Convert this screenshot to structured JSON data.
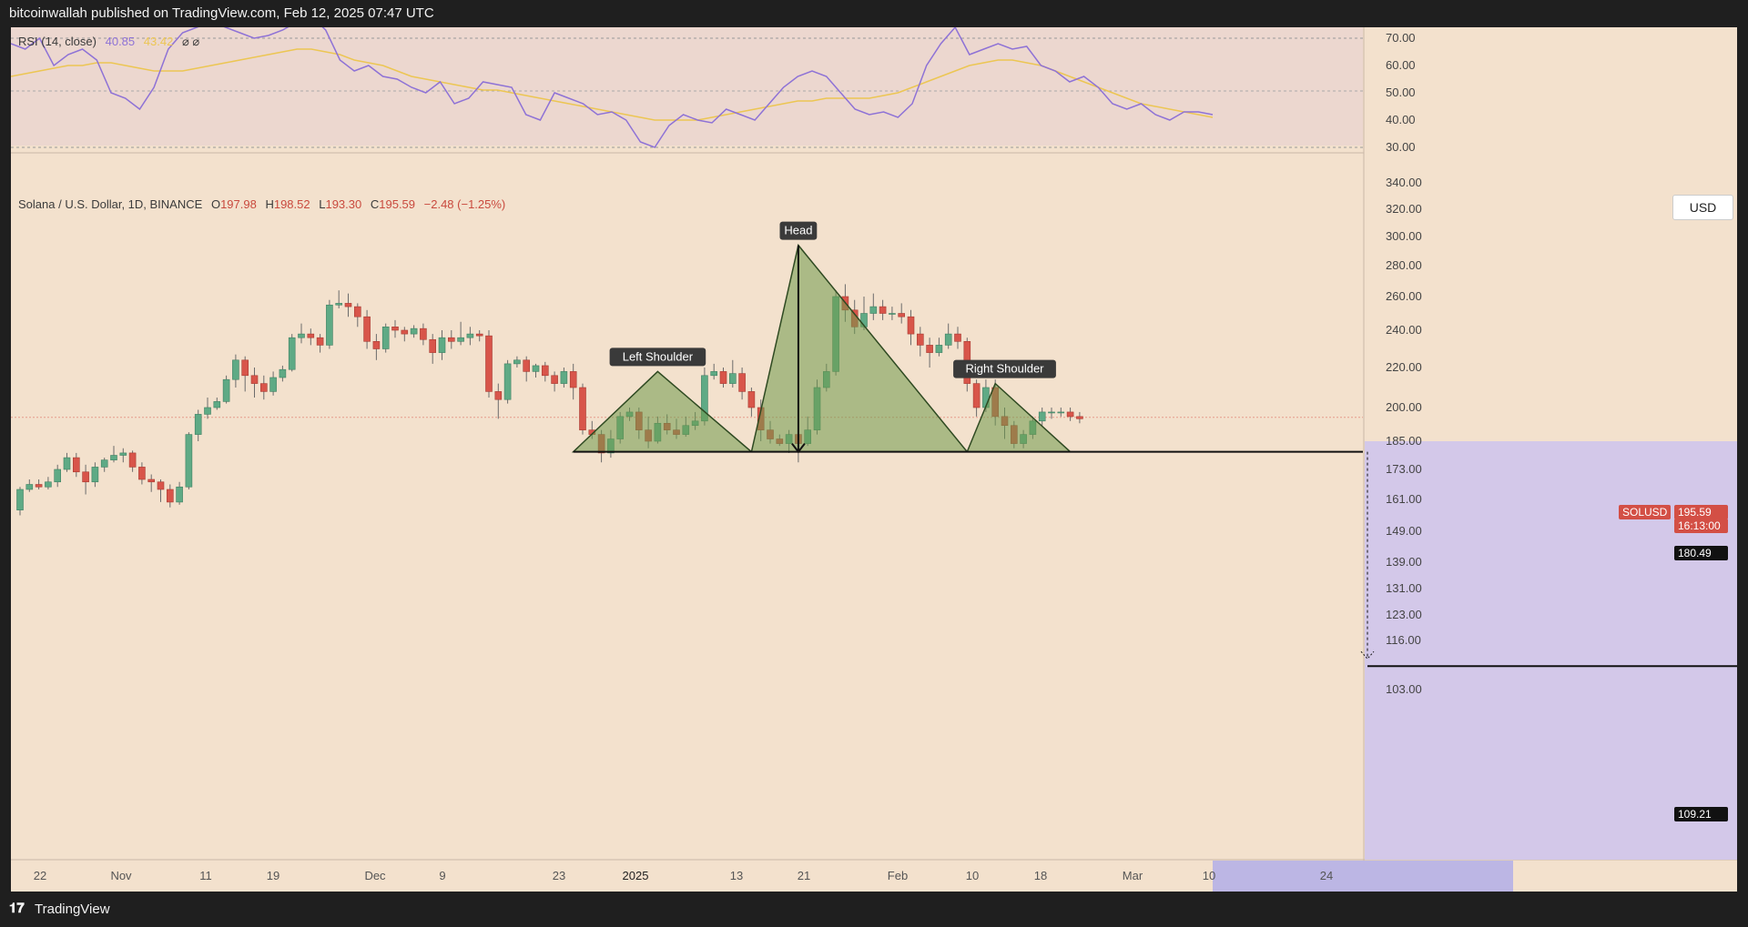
{
  "publisher": "bitcoinwallah published on TradingView.com, Feb 12, 2025 07:47 UTC",
  "footer": {
    "logo_text": "𝟏𝟕",
    "brand": "TradingView"
  },
  "rsi_legend": {
    "name": "RSI (14, close)",
    "rsi_value": "40.85",
    "ma_value": "43.42",
    "extra": "⌀ ⌀"
  },
  "main_legend": {
    "symbol": "Solana / U.S. Dollar, 1D, BINANCE",
    "open_label": "O",
    "open": "197.98",
    "high_label": "H",
    "high": "198.52",
    "low_label": "L",
    "low": "193.30",
    "close_label": "C",
    "close": "195.59",
    "change": "−2.48 (−1.25%)"
  },
  "currency": "USD",
  "price_tags": {
    "symbol": "SOLUSD",
    "last": "195.59",
    "countdown": "16:13:00",
    "neckline": "180.49",
    "target": "109.21"
  },
  "colors": {
    "bg": "#f3e1cd",
    "up": "#5faa85",
    "down": "#d8554a",
    "pattern_fill": "#6f9a4d",
    "rsi_line": "#8e72d6",
    "rsi_ma": "#ecc653"
  },
  "annotations": {
    "left_shoulder": "Left Shoulder",
    "head": "Head",
    "right_shoulder": "Right Shoulder"
  },
  "chart_data": [
    {
      "type": "line",
      "title": "RSI (14, close)",
      "ylim": [
        30,
        70
      ],
      "y_ticks": [
        "70.00",
        "60.00",
        "50.00",
        "40.00",
        "30.00"
      ],
      "rsi": [
        68,
        66,
        70,
        60,
        64,
        66,
        62,
        50,
        48,
        44,
        52,
        66,
        72,
        74,
        76,
        74,
        72,
        70,
        71,
        73,
        76,
        78,
        73,
        62,
        58,
        60,
        56,
        55,
        52,
        50,
        54,
        46,
        48,
        54,
        53,
        52,
        42,
        40,
        50,
        48,
        46,
        42,
        43,
        40,
        32,
        30,
        38,
        42,
        40,
        39,
        44,
        42,
        40,
        46,
        52,
        56,
        58,
        56,
        50,
        44,
        42,
        43,
        41,
        46,
        60,
        68,
        74,
        64,
        66,
        68,
        66,
        67,
        60,
        58,
        54,
        56,
        52,
        46,
        44,
        46,
        42,
        40,
        43,
        43,
        42
      ],
      "ma": [
        56,
        57,
        58,
        59,
        60,
        60,
        61,
        61,
        60,
        59,
        58,
        58,
        58,
        59,
        60,
        61,
        62,
        63,
        64,
        65,
        66,
        66,
        65,
        64,
        62,
        61,
        60,
        58,
        56,
        55,
        54,
        53,
        52,
        51,
        51,
        50,
        49,
        48,
        47,
        46,
        45,
        44,
        43,
        42,
        41,
        40,
        40,
        40,
        40,
        41,
        42,
        43,
        44,
        45,
        46,
        47,
        47,
        48,
        48,
        48,
        48,
        49,
        50,
        52,
        54,
        56,
        58,
        60,
        61,
        62,
        62,
        61,
        60,
        58,
        56,
        54,
        52,
        50,
        48,
        46,
        45,
        44,
        43,
        42,
        41
      ]
    },
    {
      "type": "candlestick",
      "title": "Solana / U.S. Dollar, 1D, BINANCE",
      "ylim": [
        100,
        345
      ],
      "y_ticks": [
        "340.00",
        "320.00",
        "300.00",
        "280.00",
        "260.00",
        "240.00",
        "220.00",
        "200.00",
        "185.00",
        "173.00",
        "161.00",
        "149.00",
        "139.00",
        "131.00",
        "123.00",
        "116.00",
        "103.00"
      ],
      "x_ticks": [
        "22",
        "Nov",
        "11",
        "19",
        "Dec",
        "9",
        "23",
        "2025",
        "13",
        "21",
        "Feb",
        "10",
        "18",
        "Mar",
        "10",
        "24"
      ],
      "candles": [
        [
          157,
          165,
          155,
          166
        ],
        [
          165,
          167,
          164,
          169
        ],
        [
          167,
          166,
          165,
          169
        ],
        [
          166,
          168,
          165,
          170
        ],
        [
          168,
          173,
          166,
          175
        ],
        [
          173,
          178,
          172,
          180
        ],
        [
          178,
          172,
          170,
          180
        ],
        [
          172,
          168,
          163,
          175
        ],
        [
          168,
          174,
          166,
          176
        ],
        [
          174,
          177,
          172,
          178
        ],
        [
          177,
          179,
          176,
          183
        ],
        [
          179,
          180,
          176,
          182
        ],
        [
          180,
          174,
          172,
          181
        ],
        [
          174,
          169,
          167,
          176
        ],
        [
          169,
          168,
          164,
          171
        ],
        [
          168,
          165,
          160,
          169
        ],
        [
          165,
          160,
          158,
          167
        ],
        [
          160,
          166,
          159,
          168
        ],
        [
          166,
          188,
          165,
          189
        ],
        [
          188,
          197,
          185,
          199
        ],
        [
          197,
          200,
          195,
          205
        ],
        [
          200,
          203,
          199,
          205
        ],
        [
          203,
          214,
          202,
          216
        ],
        [
          214,
          224,
          210,
          227
        ],
        [
          224,
          216,
          208,
          226
        ],
        [
          216,
          212,
          205,
          220
        ],
        [
          212,
          208,
          204,
          216
        ],
        [
          208,
          215,
          206,
          218
        ],
        [
          215,
          219,
          213,
          221
        ],
        [
          219,
          236,
          218,
          238
        ],
        [
          236,
          238,
          233,
          244
        ],
        [
          238,
          236,
          232,
          241
        ],
        [
          236,
          232,
          228,
          238
        ],
        [
          232,
          255,
          230,
          258
        ],
        [
          255,
          256,
          253,
          264
        ],
        [
          256,
          254,
          248,
          262
        ],
        [
          254,
          248,
          242,
          256
        ],
        [
          248,
          234,
          230,
          252
        ],
        [
          234,
          230,
          224,
          238
        ],
        [
          230,
          242,
          228,
          244
        ],
        [
          242,
          240,
          236,
          246
        ],
        [
          240,
          238,
          234,
          242
        ],
        [
          238,
          241,
          236,
          243
        ],
        [
          241,
          235,
          232,
          244
        ],
        [
          235,
          228,
          222,
          238
        ],
        [
          228,
          236,
          224,
          240
        ],
        [
          236,
          234,
          230,
          240
        ],
        [
          234,
          236,
          232,
          245
        ],
        [
          236,
          238,
          232,
          242
        ],
        [
          238,
          237,
          234,
          240
        ],
        [
          237,
          208,
          205,
          240
        ],
        [
          208,
          204,
          195,
          212
        ],
        [
          204,
          222,
          202,
          224
        ],
        [
          222,
          224,
          220,
          226
        ],
        [
          224,
          218,
          213,
          226
        ],
        [
          218,
          221,
          215,
          222
        ],
        [
          221,
          216,
          213,
          223
        ],
        [
          216,
          212,
          208,
          218
        ],
        [
          212,
          218,
          210,
          220
        ],
        [
          218,
          210,
          204,
          222
        ],
        [
          210,
          190,
          188,
          212
        ],
        [
          190,
          188,
          186,
          194
        ],
        [
          188,
          180,
          176,
          190
        ],
        [
          180,
          186,
          178,
          190
        ],
        [
          186,
          196,
          184,
          198
        ],
        [
          196,
          198,
          194,
          200
        ],
        [
          198,
          190,
          186,
          200
        ],
        [
          190,
          185,
          182,
          196
        ],
        [
          185,
          193,
          184,
          196
        ],
        [
          193,
          190,
          188,
          197
        ],
        [
          190,
          188,
          186,
          195
        ],
        [
          188,
          192,
          187,
          196
        ],
        [
          192,
          194,
          190,
          198
        ],
        [
          194,
          216,
          192,
          220
        ],
        [
          216,
          218,
          214,
          222
        ],
        [
          218,
          212,
          210,
          220
        ],
        [
          212,
          217,
          210,
          224
        ],
        [
          217,
          208,
          204,
          220
        ],
        [
          208,
          200,
          196,
          210
        ],
        [
          200,
          190,
          185,
          204
        ],
        [
          190,
          186,
          184,
          194
        ],
        [
          186,
          184,
          183,
          188
        ],
        [
          184,
          188,
          180,
          190
        ],
        [
          188,
          184,
          176,
          190
        ],
        [
          184,
          190,
          183,
          196
        ],
        [
          190,
          210,
          188,
          214
        ],
        [
          210,
          218,
          208,
          222
        ],
        [
          218,
          260,
          216,
          264
        ],
        [
          260,
          252,
          245,
          268
        ],
        [
          252,
          242,
          238,
          258
        ],
        [
          242,
          250,
          240,
          260
        ],
        [
          250,
          254,
          246,
          262
        ],
        [
          254,
          250,
          246,
          258
        ],
        [
          250,
          250,
          246,
          254
        ],
        [
          250,
          248,
          244,
          256
        ],
        [
          248,
          238,
          232,
          252
        ],
        [
          238,
          232,
          226,
          242
        ],
        [
          232,
          228,
          220,
          236
        ],
        [
          228,
          232,
          226,
          236
        ],
        [
          232,
          238,
          230,
          244
        ],
        [
          238,
          234,
          230,
          242
        ],
        [
          234,
          212,
          208,
          236
        ],
        [
          212,
          200,
          196,
          214
        ],
        [
          200,
          210,
          198,
          214
        ],
        [
          210,
          196,
          192,
          214
        ],
        [
          196,
          192,
          186,
          200
        ],
        [
          192,
          184,
          182,
          194
        ],
        [
          184,
          188,
          182,
          190
        ],
        [
          188,
          194,
          186,
          196
        ],
        [
          194,
          198,
          192,
          200
        ],
        [
          198,
          198,
          195,
          200
        ],
        [
          198,
          198,
          196,
          200
        ],
        [
          198,
          196,
          194,
          200
        ],
        [
          196,
          195,
          193,
          198
        ]
      ],
      "head_and_shoulders": {
        "left_shoulder": {
          "start": 175,
          "peak": 218,
          "end": 176
        },
        "head": {
          "start": 176,
          "peak": 294,
          "end": 176
        },
        "right_shoulder": {
          "start": 176,
          "peak": 212,
          "end": 176
        },
        "neckline": 180.49,
        "target": 109.21
      },
      "last_price": 195.59
    }
  ]
}
